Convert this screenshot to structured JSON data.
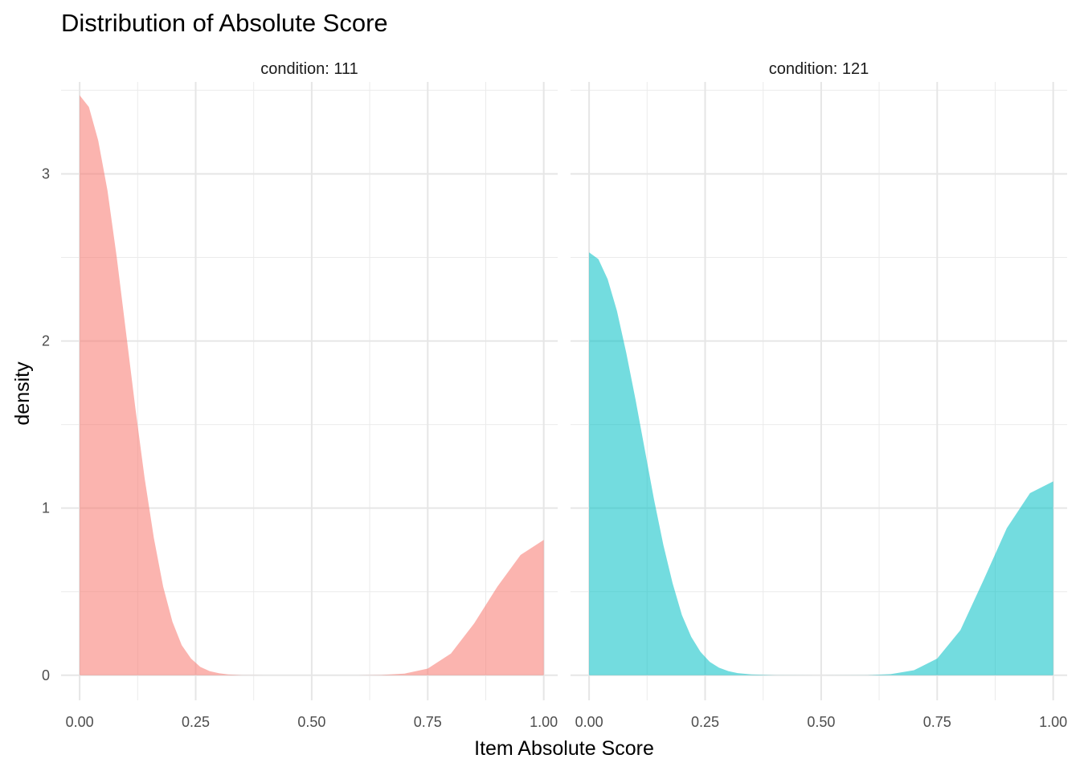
{
  "chart_data": {
    "type": "area",
    "title": "Distribution of Absolute Score",
    "xlabel": "Item Absolute Score",
    "ylabel": "density",
    "xlim": [
      -0.04,
      1.03
    ],
    "ylim": [
      -0.15,
      3.55
    ],
    "x_ticks": [
      "0.00",
      "0.25",
      "0.50",
      "0.75",
      "1.00"
    ],
    "y_ticks": [
      "0",
      "1",
      "2",
      "3"
    ],
    "grid": true,
    "legend": "none",
    "panels": [
      {
        "strip": "condition: 111",
        "fill": "#F8766D",
        "x": [
          0.0,
          0.02,
          0.04,
          0.06,
          0.08,
          0.1,
          0.12,
          0.14,
          0.16,
          0.18,
          0.2,
          0.22,
          0.24,
          0.26,
          0.28,
          0.3,
          0.32,
          0.35,
          0.4,
          0.5,
          0.6,
          0.65,
          0.7,
          0.75,
          0.8,
          0.85,
          0.9,
          0.95,
          1.0
        ],
        "values": [
          3.47,
          3.4,
          3.2,
          2.9,
          2.5,
          2.05,
          1.6,
          1.18,
          0.82,
          0.53,
          0.32,
          0.18,
          0.1,
          0.05,
          0.025,
          0.012,
          0.005,
          0.001,
          0.0,
          0.0,
          0.0,
          0.002,
          0.01,
          0.04,
          0.13,
          0.31,
          0.53,
          0.72,
          0.81
        ]
      },
      {
        "strip": "condition: 121",
        "fill": "#00BFC4",
        "x": [
          0.0,
          0.02,
          0.04,
          0.06,
          0.08,
          0.1,
          0.12,
          0.14,
          0.16,
          0.18,
          0.2,
          0.22,
          0.24,
          0.26,
          0.28,
          0.3,
          0.32,
          0.35,
          0.4,
          0.5,
          0.6,
          0.65,
          0.7,
          0.75,
          0.8,
          0.85,
          0.9,
          0.95,
          1.0
        ],
        "values": [
          2.53,
          2.49,
          2.37,
          2.18,
          1.93,
          1.65,
          1.35,
          1.05,
          0.78,
          0.55,
          0.36,
          0.23,
          0.14,
          0.08,
          0.045,
          0.025,
          0.013,
          0.005,
          0.001,
          0.0,
          0.001,
          0.007,
          0.03,
          0.1,
          0.27,
          0.57,
          0.88,
          1.09,
          1.16
        ]
      }
    ]
  }
}
